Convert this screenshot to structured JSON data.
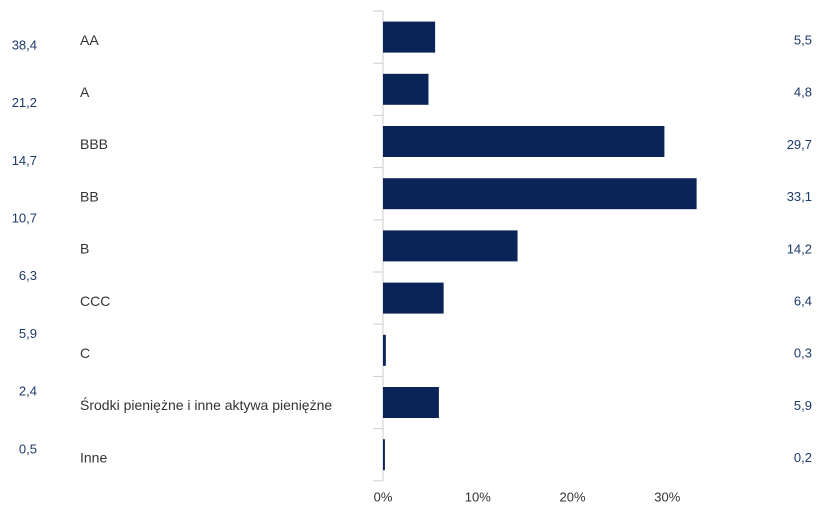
{
  "chart_data": {
    "type": "bar",
    "orientation": "horizontal",
    "categories": [
      "AA",
      "A",
      "BBB",
      "BB",
      "B",
      "CCC",
      "C",
      "Środki pieniężne i inne aktywa pieniężne",
      "Inne"
    ],
    "values": [
      5.5,
      4.8,
      29.7,
      33.1,
      14.2,
      6.4,
      0.3,
      5.9,
      0.2
    ],
    "value_labels": [
      "5,5",
      "4,8",
      "29,7",
      "33,1",
      "14,2",
      "6,4",
      "0,3",
      "5,9",
      "0,2"
    ],
    "left_labels": [
      "38,4",
      "21,2",
      "14,7",
      "10,7",
      "6,3",
      "5,9",
      "2,4",
      "0,5"
    ],
    "color": "#0a2458",
    "xlim": [
      0,
      40
    ],
    "xticks": [
      {
        "value": 0,
        "label": "0%"
      },
      {
        "value": 10,
        "label": "10%"
      },
      {
        "value": 20,
        "label": "20%"
      },
      {
        "value": 30,
        "label": "30%"
      }
    ]
  }
}
